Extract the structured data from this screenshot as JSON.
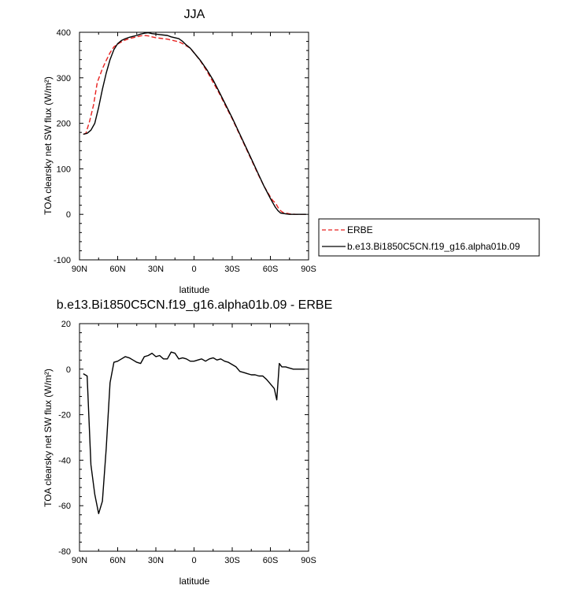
{
  "chart_data": [
    {
      "type": "line",
      "title": "JJA",
      "xlabel": "latitude",
      "ylabel": "TOA clearsky net SW flux (W/m²)",
      "xlim": [
        90,
        -90
      ],
      "ylim": [
        -100,
        400
      ],
      "xticks": [
        90,
        60,
        30,
        0,
        -30,
        -60,
        -90
      ],
      "xtick_labels": [
        "90N",
        "60N",
        "30N",
        "0",
        "30S",
        "60S",
        "90S"
      ],
      "yticks": [
        -100,
        0,
        100,
        200,
        300,
        400
      ],
      "ytick_labels": [
        "-100",
        "0",
        "100",
        "200",
        "300",
        "400"
      ],
      "legend_position": "right",
      "series": [
        {
          "name": "ERBE",
          "color": "#e8201e",
          "dash": "dashed",
          "x": [
            87,
            85,
            82,
            79,
            76,
            72,
            69,
            66,
            63,
            60,
            57,
            54,
            51,
            48,
            45,
            42,
            39,
            36,
            33,
            30,
            27,
            24,
            21,
            18,
            15,
            12,
            9,
            6,
            3,
            0,
            -5,
            -10,
            -15,
            -20,
            -25,
            -30,
            -35,
            -40,
            -45,
            -50,
            -55,
            -60,
            -62,
            -64,
            -66,
            -68,
            -70,
            -72,
            -75,
            -80,
            -85,
            -88
          ],
          "y": [
            176,
            178,
            205,
            240,
            290,
            320,
            338,
            355,
            368,
            374,
            379,
            383,
            386,
            388,
            390,
            392,
            393,
            392,
            390,
            388,
            387,
            386,
            385,
            383,
            381,
            379,
            375,
            370,
            365,
            355,
            337,
            315,
            290,
            265,
            237,
            210,
            180,
            150,
            120,
            90,
            62,
            38,
            30,
            25,
            15,
            8,
            4,
            3,
            1,
            0,
            0,
            0
          ]
        },
        {
          "name": "b.e13.Bi1850C5CN.f19_g16.alpha01b.09",
          "color": "#000000",
          "dash": "solid",
          "x": [
            87,
            84,
            81,
            78,
            75,
            72,
            69,
            66,
            63,
            60,
            57,
            54,
            51,
            48,
            45,
            42,
            39,
            36,
            33,
            30,
            27,
            24,
            21,
            18,
            15,
            12,
            9,
            6,
            3,
            0,
            -5,
            -10,
            -15,
            -20,
            -25,
            -30,
            -35,
            -40,
            -45,
            -50,
            -55,
            -60,
            -62,
            -64,
            -66,
            -68,
            -70,
            -72,
            -75,
            -80,
            -85,
            -88
          ],
          "y": [
            176,
            178,
            185,
            200,
            235,
            275,
            310,
            340,
            362,
            375,
            382,
            386,
            389,
            391,
            393,
            396,
            398,
            399,
            397,
            396,
            395,
            394,
            393,
            390,
            388,
            386,
            380,
            372,
            365,
            355,
            338,
            318,
            295,
            268,
            240,
            212,
            182,
            152,
            122,
            92,
            62,
            35,
            25,
            15,
            8,
            3,
            2,
            1,
            0,
            0,
            0,
            0
          ]
        }
      ]
    },
    {
      "type": "line",
      "title": "b.e13.Bi1850C5CN.f19_g16.alpha01b.09 - ERBE",
      "xlabel": "latitude",
      "ylabel": "TOA clearsky net SW flux (W/m²)",
      "xlim": [
        90,
        -90
      ],
      "ylim": [
        -80,
        20
      ],
      "xticks": [
        90,
        60,
        30,
        0,
        -30,
        -60,
        -90
      ],
      "xtick_labels": [
        "90N",
        "60N",
        "30N",
        "0",
        "30S",
        "60S",
        "90S"
      ],
      "yticks": [
        -80,
        -60,
        -40,
        -20,
        0,
        20
      ],
      "ytick_labels": [
        "-80",
        "-60",
        "-40",
        "-20",
        "0",
        "20"
      ],
      "series": [
        {
          "name": "",
          "color": "#000000",
          "dash": "solid",
          "x": [
            87,
            84,
            81,
            78,
            75,
            72,
            69,
            66,
            63,
            60,
            57,
            54,
            51,
            48,
            45,
            42,
            39,
            36,
            33,
            30,
            27,
            24,
            21,
            18,
            15,
            12,
            9,
            6,
            3,
            0,
            -3,
            -6,
            -9,
            -12,
            -15,
            -18,
            -21,
            -24,
            -27,
            -30,
            -33,
            -36,
            -39,
            -42,
            -45,
            -48,
            -51,
            -54,
            -57,
            -60,
            -63,
            -65,
            -67,
            -69,
            -72,
            -75,
            -78,
            -81,
            -84,
            -87
          ],
          "y": [
            -2,
            -3,
            -42,
            -55,
            -63.5,
            -58,
            -35,
            -6,
            3,
            3.5,
            4.5,
            5.5,
            5,
            4,
            3,
            2.5,
            5.5,
            6,
            7,
            5.5,
            6,
            4.5,
            4.5,
            7.5,
            7,
            4.5,
            5,
            4.5,
            3.5,
            3.5,
            4,
            4.5,
            3.5,
            4.5,
            5,
            4,
            4.5,
            3.5,
            3,
            2,
            1,
            -1,
            -1.5,
            -2,
            -2.5,
            -2.5,
            -3,
            -3,
            -4.5,
            -6.5,
            -8.5,
            -13.5,
            2.5,
            1,
            1,
            0.5,
            0,
            0,
            0,
            0
          ]
        }
      ]
    }
  ]
}
